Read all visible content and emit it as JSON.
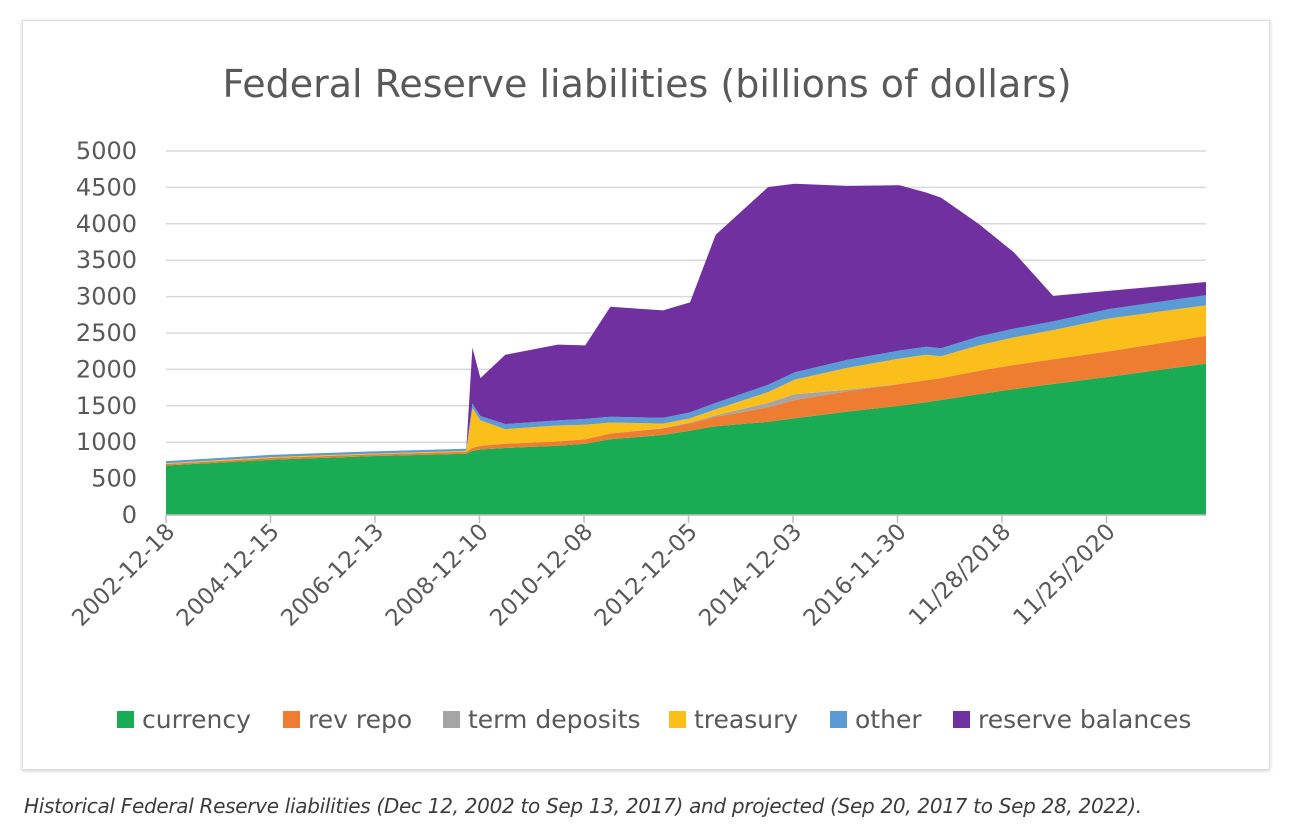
{
  "chart_data": {
    "type": "area",
    "stacked": true,
    "title": "Federal Reserve liabilities (billions of dollars)",
    "xlabel": "",
    "ylabel": "",
    "ylim": [
      0,
      5000
    ],
    "yticks": [
      0,
      500,
      1000,
      1500,
      2000,
      2500,
      3000,
      3500,
      4000,
      4500,
      5000
    ],
    "grid": true,
    "legend_position": "bottom",
    "x_tick_labels": [
      "2002-12-18",
      "2004-12-15",
      "2006-12-13",
      "2008-12-10",
      "2010-12-08",
      "2012-12-05",
      "2014-12-03",
      "2016-11-30",
      "11/28/2018",
      "11/25/2020"
    ],
    "x": [
      "2002-12-18",
      "2004-12-15",
      "2006-12-13",
      "2008-09-03",
      "2008-10-15",
      "2008-12-10",
      "2009-06-01",
      "2010-06-01",
      "2010-12-08",
      "2011-06-01",
      "2012-06-01",
      "2012-12-05",
      "2013-06-01",
      "2014-06-01",
      "2014-12-03",
      "2015-12-01",
      "2016-11-30",
      "2017-06-01",
      "2017-09-13",
      "2018-06-01",
      "2019-02-01",
      "2019-11-01",
      "2020-11-25",
      "2022-09-28"
    ],
    "series": [
      {
        "name": "currency",
        "color": "#1aab55",
        "values": [
          680,
          760,
          810,
          840,
          880,
          900,
          920,
          950,
          980,
          1040,
          1100,
          1160,
          1220,
          1280,
          1330,
          1420,
          1500,
          1550,
          1580,
          1660,
          1730,
          1800,
          1900,
          2080
        ]
      },
      {
        "name": "rev repo",
        "color": "#ee7d31",
        "values": [
          20,
          25,
          25,
          30,
          40,
          50,
          60,
          60,
          60,
          80,
          90,
          100,
          130,
          200,
          250,
          280,
          300,
          300,
          300,
          320,
          330,
          340,
          350,
          380
        ]
      },
      {
        "name": "term deposits",
        "color": "#a5a5a5",
        "values": [
          0,
          0,
          0,
          0,
          0,
          0,
          0,
          0,
          0,
          0,
          5,
          10,
          20,
          60,
          80,
          20,
          0,
          0,
          0,
          0,
          0,
          0,
          0,
          0
        ]
      },
      {
        "name": "treasury",
        "color": "#fbbf1c",
        "values": [
          10,
          10,
          10,
          10,
          550,
          350,
          200,
          220,
          200,
          150,
          60,
          60,
          80,
          150,
          200,
          300,
          350,
          350,
          300,
          350,
          380,
          400,
          450,
          420
        ]
      },
      {
        "name": "other",
        "color": "#5b9bd5",
        "values": [
          30,
          30,
          30,
          30,
          60,
          60,
          70,
          70,
          80,
          80,
          80,
          80,
          90,
          100,
          100,
          110,
          110,
          110,
          110,
          120,
          120,
          120,
          130,
          140
        ]
      },
      {
        "name": "reserve balances",
        "color": "#7030a0",
        "values": [
          0,
          0,
          0,
          0,
          770,
          520,
          950,
          1040,
          1010,
          1510,
          1475,
          1510,
          2310,
          2715,
          2590,
          2390,
          2270,
          2120,
          2070,
          1550,
          1050,
          350,
          250,
          180
        ]
      }
    ]
  },
  "caption": "Historical Federal Reserve liabilities (Dec 12, 2002 to Sep 13, 2017) and projected (Sep 20, 2017 to Sep 28, 2022)."
}
